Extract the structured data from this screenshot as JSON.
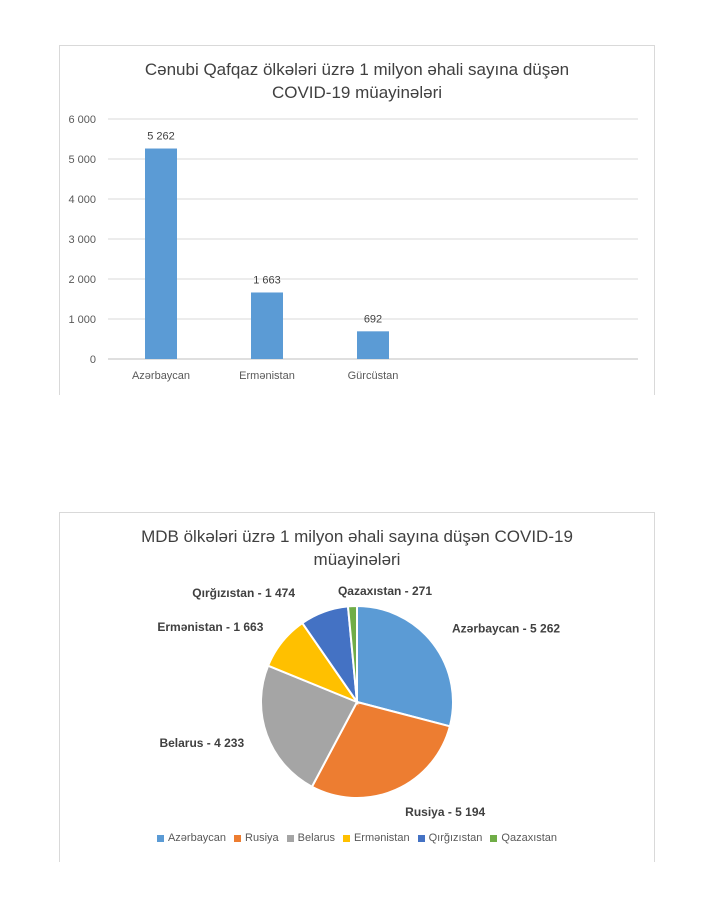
{
  "chart_data": [
    {
      "type": "bar",
      "title_line1": "Cənubi Qafqaz ölkələri üzrə 1 milyon əhali sayına düşən",
      "title_line2": "COVID-19 müayinələri",
      "categories": [
        "Azərbaycan",
        "Ermənistan",
        "Gürcüstan"
      ],
      "values": [
        5262,
        1663,
        692
      ],
      "value_labels": [
        "5 262",
        "1 663",
        "692"
      ],
      "ylim": [
        0,
        6000
      ],
      "yticks": [
        0,
        1000,
        2000,
        3000,
        4000,
        5000,
        6000
      ],
      "ytick_labels": [
        "0",
        "1 000",
        "2 000",
        "3 000",
        "4 000",
        "5 000",
        "6 000"
      ],
      "grid": true,
      "color": "#5b9bd5"
    },
    {
      "type": "pie",
      "title_line1": "MDB ölkələri üzrə 1 milyon əhali sayına düşən COVID-19",
      "title_line2": "müayinələri",
      "slices": [
        {
          "name": "Azərbaycan",
          "value": 5262,
          "label": "Azərbaycan - 5 262",
          "color": "#5b9bd5"
        },
        {
          "name": "Rusiya",
          "value": 5194,
          "label": "Rusiya - 5 194",
          "color": "#ed7d31"
        },
        {
          "name": "Belarus",
          "value": 4233,
          "label": "Belarus - 4 233",
          "color": "#a5a5a5"
        },
        {
          "name": "Ermənistan",
          "value": 1663,
          "label": "Ermənistan - 1 663",
          "color": "#ffc000"
        },
        {
          "name": "Qırğızıstan",
          "value": 1474,
          "label": "Qırğızıstan - 1 474",
          "color": "#4472c4"
        },
        {
          "name": "Qazaxıstan",
          "value": 271,
          "label": "Qazaxıstan - 271",
          "color": "#70ad47"
        }
      ],
      "legend_position": "bottom"
    }
  ]
}
